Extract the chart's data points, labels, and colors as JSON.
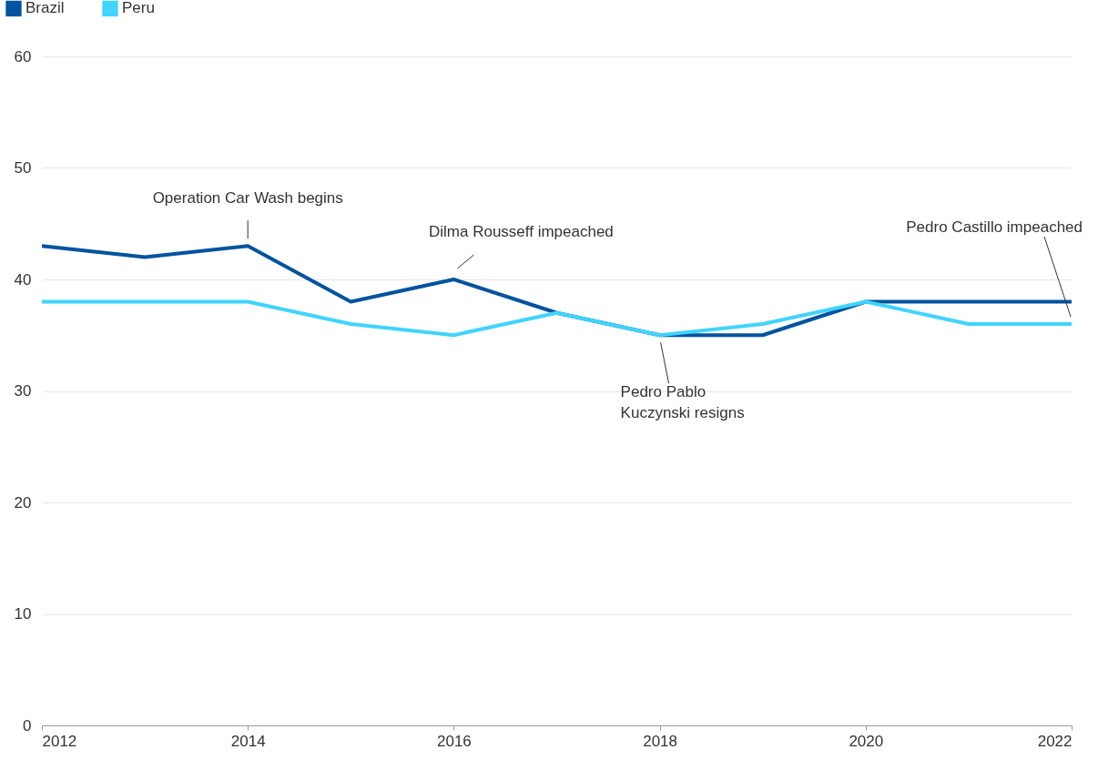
{
  "chart_data": {
    "type": "line",
    "x": [
      2012,
      2013,
      2014,
      2015,
      2016,
      2017,
      2018,
      2019,
      2020,
      2021,
      2022
    ],
    "series": [
      {
        "name": "Brazil",
        "color": "#00539f",
        "values": [
          43,
          42,
          43,
          38,
          40,
          37,
          35,
          35,
          38,
          38,
          38
        ]
      },
      {
        "name": "Peru",
        "color": "#40d4ff",
        "values": [
          38,
          38,
          38,
          36,
          35,
          37,
          35,
          36,
          38,
          36,
          36
        ]
      }
    ],
    "xlim": [
      2012,
      2022
    ],
    "xticks": [
      2012,
      2014,
      2016,
      2018,
      2020,
      2022
    ],
    "ylim": [
      0,
      60
    ],
    "yticks": [
      0,
      10,
      20,
      30,
      40,
      50,
      60
    ],
    "grid": "y",
    "legend": "top left",
    "marker": "none",
    "line_style": "solid",
    "annotations": [
      {
        "text": "Operation Car Wash begins",
        "x": 2014,
        "y": 43
      },
      {
        "text": "Dilma Rousseff impeached",
        "x": 2016,
        "y": 40
      },
      {
        "text": "Pedro Pablo\nKuczynski resigns",
        "x": 2018,
        "y": 35
      },
      {
        "text": "Pedro Castillo impeached",
        "x": 2022,
        "y": 36
      }
    ]
  }
}
